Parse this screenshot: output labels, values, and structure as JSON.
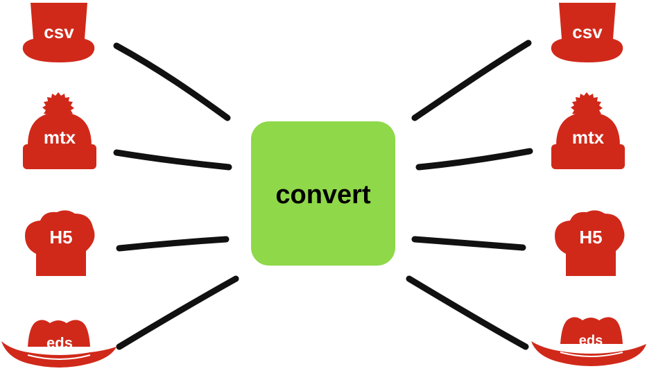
{
  "center": {
    "label": "convert",
    "color": "#8fd84a"
  },
  "hat_color": "#d0291a",
  "line_color": "#111111",
  "left_hats": [
    {
      "label": "csv",
      "icon": "top-hat-icon"
    },
    {
      "label": "mtx",
      "icon": "beanie-icon"
    },
    {
      "label": "H5",
      "icon": "chef-hat-icon"
    },
    {
      "label": "eds",
      "icon": "cowboy-hat-icon"
    }
  ],
  "right_hats": [
    {
      "label": "csv",
      "icon": "top-hat-icon"
    },
    {
      "label": "mtx",
      "icon": "beanie-icon"
    },
    {
      "label": "H5",
      "icon": "chef-hat-icon"
    },
    {
      "label": "eds",
      "icon": "cowboy-hat-icon"
    }
  ]
}
